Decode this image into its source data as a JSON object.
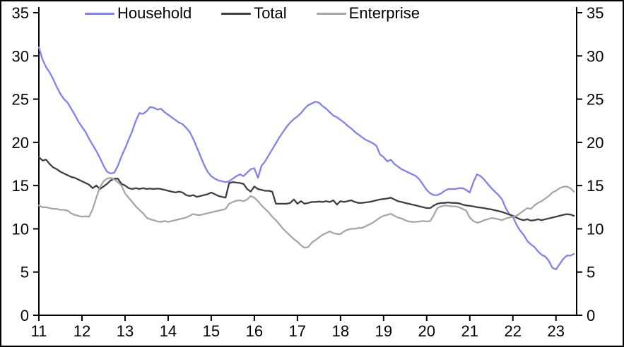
{
  "chart_data": {
    "type": "line",
    "grid": false,
    "legend_position": "top",
    "legend": [
      {
        "id": "household",
        "label": "Household",
        "color": "#8080f2"
      },
      {
        "id": "total",
        "label": "Total",
        "color": "#3f3f3f"
      },
      {
        "id": "enterprise",
        "label": "Enterprise",
        "color": "#a6a6a6"
      }
    ],
    "x_axis": {
      "min": 11,
      "max": 23.48,
      "ticks": [
        11,
        12,
        13,
        14,
        15,
        16,
        17,
        18,
        19,
        20,
        21,
        22,
        23
      ]
    },
    "y_axis": {
      "min": 0,
      "max": 35,
      "ticks": [
        0,
        5,
        10,
        15,
        20,
        25,
        30,
        35
      ],
      "mirrored_right_axis": true
    },
    "x_start": 11.0,
    "x_step_years": 0.0833333,
    "series": [
      {
        "name": "Household",
        "color": "#8080f2",
        "values": [
          31.0,
          29.6,
          28.7,
          28.1,
          27.3,
          26.4,
          25.6,
          25.0,
          24.6,
          23.9,
          23.2,
          22.4,
          21.8,
          21.2,
          20.4,
          19.7,
          19.0,
          18.2,
          17.3,
          16.6,
          16.4,
          16.5,
          17.3,
          18.4,
          19.3,
          20.3,
          21.3,
          22.5,
          23.4,
          23.3,
          23.6,
          24.1,
          24.0,
          23.8,
          23.9,
          23.5,
          23.2,
          22.9,
          22.6,
          22.3,
          22.1,
          21.7,
          21.2,
          20.4,
          19.4,
          18.4,
          17.4,
          16.6,
          16.1,
          15.8,
          15.6,
          15.5,
          15.4,
          15.5,
          15.8,
          16.1,
          16.3,
          16.1,
          16.5,
          16.9,
          17.0,
          15.9,
          17.3,
          17.8,
          18.5,
          19.2,
          19.9,
          20.6,
          21.2,
          21.8,
          22.3,
          22.7,
          23.0,
          23.4,
          23.9,
          24.3,
          24.5,
          24.7,
          24.6,
          24.2,
          23.9,
          23.5,
          23.1,
          22.9,
          22.6,
          22.3,
          21.9,
          21.6,
          21.2,
          20.9,
          20.6,
          20.3,
          20.1,
          19.9,
          19.6,
          18.6,
          18.3,
          17.8,
          18.0,
          17.5,
          17.2,
          16.9,
          16.7,
          16.5,
          16.3,
          16.1,
          15.7,
          15.1,
          14.5,
          14.1,
          13.9,
          13.9,
          14.1,
          14.4,
          14.6,
          14.6,
          14.6,
          14.7,
          14.7,
          14.5,
          14.2,
          15.4,
          16.3,
          16.1,
          15.7,
          15.2,
          14.7,
          14.3,
          13.9,
          13.4,
          12.4,
          11.7,
          11.4,
          10.5,
          9.8,
          9.3,
          8.6,
          8.2,
          7.9,
          7.4,
          7.0,
          6.8,
          6.3,
          5.5,
          5.3,
          5.9,
          6.5,
          6.9,
          6.9,
          7.1
        ]
      },
      {
        "name": "Total",
        "color": "#3f3f3f",
        "values": [
          18.3,
          17.9,
          18.0,
          17.5,
          17.1,
          16.9,
          16.6,
          16.4,
          16.2,
          16.0,
          15.9,
          15.7,
          15.5,
          15.3,
          15.1,
          14.7,
          15.0,
          14.6,
          14.9,
          15.2,
          15.6,
          15.8,
          15.8,
          15.2,
          15.0,
          14.7,
          14.6,
          14.7,
          14.6,
          14.7,
          14.6,
          14.65,
          14.6,
          14.65,
          14.6,
          14.5,
          14.4,
          14.3,
          14.2,
          14.3,
          14.2,
          13.9,
          13.8,
          13.9,
          13.7,
          13.8,
          13.9,
          14.0,
          14.2,
          14.0,
          13.8,
          13.7,
          13.6,
          15.3,
          15.4,
          15.35,
          15.3,
          15.2,
          14.6,
          14.3,
          14.9,
          14.6,
          14.5,
          14.4,
          14.4,
          14.3,
          12.9,
          12.9,
          12.9,
          12.9,
          13.0,
          13.4,
          12.9,
          13.2,
          12.9,
          13.0,
          13.1,
          13.1,
          13.15,
          13.1,
          13.2,
          13.1,
          13.3,
          12.8,
          13.2,
          13.1,
          13.2,
          13.3,
          13.1,
          13.0,
          13.0,
          13.05,
          13.1,
          13.2,
          13.3,
          13.4,
          13.45,
          13.5,
          13.6,
          13.4,
          13.2,
          13.1,
          13.0,
          12.9,
          12.8,
          12.7,
          12.6,
          12.5,
          12.4,
          12.4,
          12.7,
          12.9,
          13.0,
          13.0,
          13.05,
          13.0,
          13.0,
          12.95,
          12.8,
          12.7,
          12.65,
          12.6,
          12.5,
          12.45,
          12.4,
          12.3,
          12.25,
          12.15,
          12.05,
          11.95,
          11.8,
          11.65,
          11.5,
          11.3,
          11.1,
          11.0,
          11.1,
          10.95,
          11.0,
          11.1,
          11.0,
          11.1,
          11.2,
          11.3,
          11.4,
          11.5,
          11.6,
          11.7,
          11.65,
          11.5
        ]
      },
      {
        "name": "Enterprise",
        "color": "#a6a6a6",
        "values": [
          12.7,
          12.5,
          12.5,
          12.4,
          12.3,
          12.3,
          12.2,
          12.2,
          12.1,
          11.8,
          11.6,
          11.5,
          11.4,
          11.45,
          11.4,
          12.3,
          13.6,
          14.8,
          15.5,
          15.8,
          15.9,
          15.7,
          15.4,
          15.0,
          14.1,
          13.6,
          13.1,
          12.6,
          12.2,
          11.8,
          11.3,
          11.1,
          11.0,
          10.85,
          10.8,
          10.9,
          10.8,
          10.9,
          11.0,
          11.1,
          11.2,
          11.3,
          11.5,
          11.7,
          11.6,
          11.6,
          11.7,
          11.8,
          11.9,
          12.0,
          12.1,
          12.2,
          12.3,
          12.9,
          13.1,
          13.25,
          13.3,
          13.2,
          13.4,
          13.8,
          13.6,
          13.2,
          12.7,
          12.3,
          11.9,
          11.4,
          11.0,
          10.5,
          10.0,
          9.6,
          9.2,
          8.8,
          8.5,
          8.1,
          7.8,
          7.9,
          8.4,
          8.7,
          9.0,
          9.3,
          9.5,
          9.7,
          9.5,
          9.4,
          9.4,
          9.7,
          9.9,
          10.0,
          10.0,
          10.1,
          10.1,
          10.3,
          10.5,
          10.7,
          11.0,
          11.3,
          11.5,
          11.6,
          11.75,
          11.5,
          11.3,
          11.2,
          11.0,
          10.85,
          10.8,
          10.8,
          10.85,
          10.9,
          10.85,
          10.9,
          11.6,
          12.4,
          12.6,
          12.7,
          12.65,
          12.6,
          12.6,
          12.5,
          12.3,
          12.1,
          11.3,
          10.9,
          10.7,
          10.8,
          11.0,
          11.1,
          11.25,
          11.2,
          11.1,
          11.0,
          11.2,
          11.3,
          11.4,
          11.5,
          11.8,
          12.1,
          12.4,
          12.3,
          12.7,
          13.0,
          13.2,
          13.5,
          13.8,
          14.2,
          14.4,
          14.7,
          14.85,
          14.9,
          14.7,
          14.3
        ]
      }
    ],
    "colors": {
      "axis": "#000000",
      "background": "#ffffff",
      "border": "#000000"
    }
  }
}
